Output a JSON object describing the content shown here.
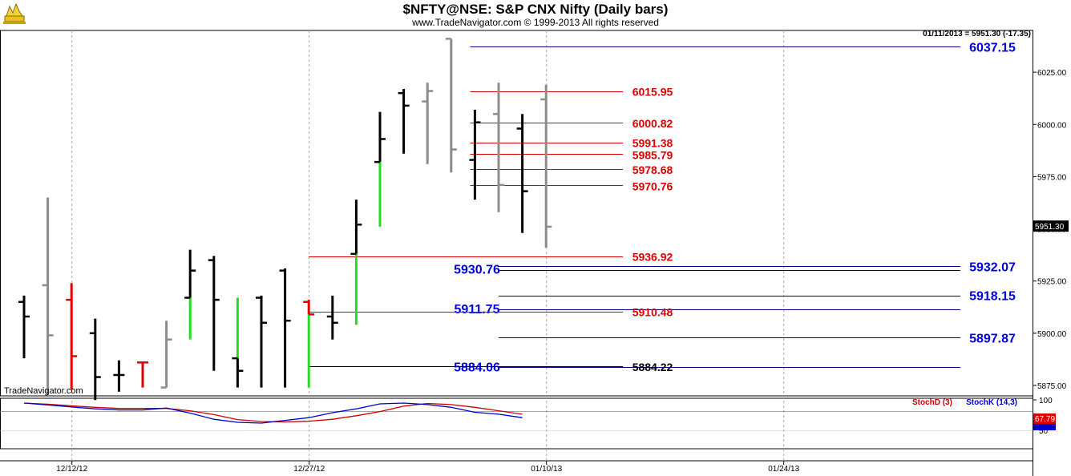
{
  "header": {
    "title": "$NFTY@NSE:  S&P CNX Nifty  (Daily bars)",
    "subtitle": "www.TradeNavigator.com © 1999-2013 All rights reserved",
    "quote": "01/11/2013 = 5951.30 (-17.35)",
    "watermark": "TradeNavigator.com",
    "logo_icon": "trade-navigator-logo-icon"
  },
  "chart_data": {
    "type": "ohlc",
    "price_ylim": [
      5870,
      6045
    ],
    "price_ticks": [
      5875.0,
      5900.0,
      5925.0,
      5950.0,
      5975.0,
      6000.0,
      6025.0
    ],
    "price_tick_labels": [
      "5875.00",
      "5900.00",
      "5925.00",
      "5950.00",
      "5975.00",
      "6000.00",
      "6025.00"
    ],
    "last_price_label": "5951.30",
    "last_price": 5951.3,
    "x_date_labels": [
      {
        "label": "12/12/12",
        "slot": 2
      },
      {
        "label": "12/27/12",
        "slot": 12
      },
      {
        "label": "01/10/13",
        "slot": 22
      },
      {
        "label": "01/24/13",
        "slot": 32
      }
    ],
    "colors": {
      "black": "#000000",
      "gray": "#8c8c8c",
      "red": "#e00000",
      "green": "#22dd22",
      "blue": "#0000cc",
      "hline_red": "#dd0000",
      "hline_blue": "#000088"
    },
    "bars": [
      {
        "o": 5915,
        "h": 5918,
        "l": 5888,
        "c": 5908,
        "color": "black"
      },
      {
        "o": 5923,
        "h": 5965,
        "l": 5870,
        "c": 5899,
        "color": "gray"
      },
      {
        "o": 5916,
        "h": 5924,
        "l": 5873,
        "c": 5889,
        "color": "red"
      },
      {
        "o": 5900,
        "h": 5907,
        "l": 5868,
        "c": 5879,
        "color": "black"
      },
      {
        "o": 5880,
        "h": 5887,
        "l": 5872,
        "c": 5880,
        "color": "black"
      },
      {
        "o": 5886,
        "h": 5886,
        "l": 5874,
        "c": 5886,
        "color": "red"
      },
      {
        "o": 5874,
        "h": 5906,
        "l": 5874,
        "c": 5897,
        "color": "gray"
      },
      {
        "o": 5917,
        "h": 5940,
        "l": 5897,
        "c": 5930,
        "color": "black",
        "low_color": "green"
      },
      {
        "o": 5935,
        "h": 5937,
        "l": 5882,
        "c": 5916,
        "color": "black"
      },
      {
        "o": 5888,
        "h": 5917,
        "l": 5874,
        "c": 5882,
        "color": "black",
        "high_color": "green"
      },
      {
        "o": 5917,
        "h": 5918,
        "l": 5874,
        "c": 5905,
        "color": "black"
      },
      {
        "o": 5930,
        "h": 5931,
        "l": 5874,
        "c": 5906,
        "color": "black"
      },
      {
        "o": 5915,
        "h": 5916,
        "l": 5874,
        "c": 5909,
        "color": "red",
        "low_color": "green"
      },
      {
        "o": 5908,
        "h": 5918,
        "l": 5897,
        "c": 5905,
        "color": "black"
      },
      {
        "o": 5938,
        "h": 5964,
        "l": 5904,
        "c": 5952,
        "color": "black",
        "low_color": "green"
      },
      {
        "o": 5982,
        "h": 6006,
        "l": 5951,
        "c": 5993,
        "color": "black",
        "low_color": "green"
      },
      {
        "o": 6015,
        "h": 6017,
        "l": 5986,
        "c": 6009,
        "color": "black"
      },
      {
        "o": 6011,
        "h": 6020,
        "l": 5981,
        "c": 6016,
        "color": "gray"
      },
      {
        "o": 6041,
        "h": 6041,
        "l": 5977,
        "c": 5988,
        "color": "gray"
      },
      {
        "o": 5983,
        "h": 6007,
        "l": 5964,
        "c": 6001,
        "color": "black"
      },
      {
        "o": 6005,
        "h": 6020,
        "l": 5958,
        "c": 5971,
        "color": "gray"
      },
      {
        "o": 5998,
        "h": 6005,
        "l": 5948,
        "c": 5968,
        "color": "black"
      },
      {
        "o": 6012,
        "h": 6019,
        "l": 5941,
        "c": 5951,
        "color": "gray"
      }
    ],
    "levels": [
      {
        "value": 6037.15,
        "label": "6037.15",
        "color": "blue",
        "side": "right",
        "from_slot": 18.8
      },
      {
        "value": 6015.95,
        "label": "6015.95",
        "color": "red",
        "side": "mid",
        "from_slot": 18.8
      },
      {
        "value": 6000.82,
        "label": "6000.82",
        "color": "red",
        "side": "mid",
        "from_slot": 18.8
      },
      {
        "value": 5991.38,
        "label": "5991.38",
        "color": "red",
        "side": "mid",
        "from_slot": 18.8
      },
      {
        "value": 5985.79,
        "label": "5985.79",
        "color": "red",
        "side": "mid",
        "from_slot": 18.8
      },
      {
        "value": 5978.68,
        "label": "5978.68",
        "color": "red",
        "side": "mid",
        "from_slot": 18.8
      },
      {
        "value": 5970.76,
        "label": "5970.76",
        "color": "red",
        "side": "mid",
        "from_slot": 18.8
      },
      {
        "value": 5936.92,
        "label": "5936.92",
        "color": "red",
        "side": "mid",
        "from_slot": 12
      },
      {
        "value": 5932.07,
        "label": "5932.07",
        "color": "blue",
        "side": "right",
        "from_slot": 20
      },
      {
        "value": 5930.76,
        "label": "5930.76",
        "color": "blue",
        "side": "left-blue",
        "from_slot": 20
      },
      {
        "value": 5918.15,
        "label": "5918.15",
        "color": "blue",
        "side": "right",
        "from_slot": 20
      },
      {
        "value": 5911.75,
        "label": "5911.75",
        "color": "blue",
        "side": "left-blue",
        "from_slot": 20
      },
      {
        "value": 5910.48,
        "label": "5910.48",
        "color": "red",
        "side": "mid",
        "from_slot": 12
      },
      {
        "value": 5897.87,
        "label": "5897.87",
        "color": "blue",
        "side": "right",
        "from_slot": 20
      },
      {
        "value": 5884.06,
        "label": "5884.06",
        "color": "blue",
        "side": "left-blue",
        "from_slot": 20
      },
      {
        "value": 5884.22,
        "label": "5884.22",
        "color": "black",
        "side": "mid",
        "from_slot": 12
      }
    ],
    "stochastic": {
      "label_d": "StochD (3)",
      "label_k": "StochK (14,3)",
      "ylim": [
        0,
        100
      ],
      "tick_labels": [
        "100",
        "50"
      ],
      "last_d_label": "67.79",
      "last_d": 67.79,
      "d_values": [
        100,
        97,
        93,
        89,
        86,
        86,
        86,
        80,
        70,
        57,
        52,
        51,
        53,
        58,
        67,
        78,
        92,
        99,
        96,
        89,
        80,
        71
      ],
      "k_values": [
        100,
        95,
        90,
        85,
        82,
        82,
        87,
        74,
        58,
        50,
        48,
        55,
        62,
        75,
        85,
        98,
        100,
        96,
        89,
        76,
        71,
        62
      ]
    }
  }
}
